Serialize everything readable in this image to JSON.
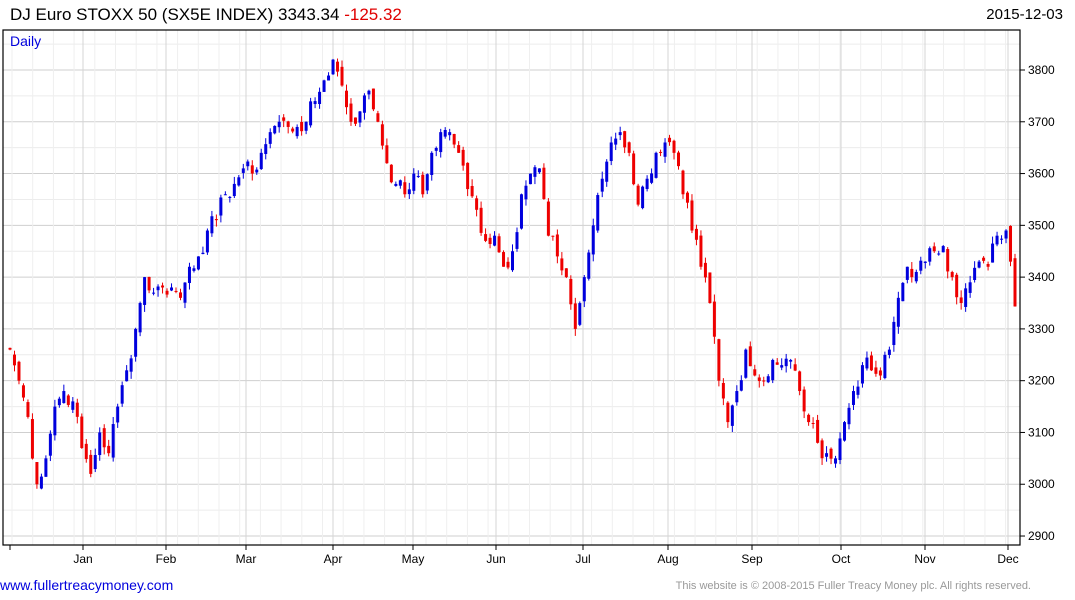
{
  "header": {
    "index_name": "DJ Euro STOXX 50 (SX5E INDEX)",
    "last": "3343.34",
    "change": "-125.32",
    "date": "2015-12-03"
  },
  "footer": {
    "site": "www.fullertreacymoney.com",
    "copyright": "This website is © 2008-2015 Fuller Treacy Money plc. All rights reserved."
  },
  "colors": {
    "up": "#0000dd",
    "down": "#ee0000",
    "grid": "#d8d8d8"
  },
  "chart_data": {
    "type": "candlestick",
    "period_label": "Daily",
    "ylim": [
      2875,
      3880
    ],
    "yticks": [
      2900,
      3000,
      3100,
      3200,
      3300,
      3400,
      3500,
      3600,
      3700,
      3800
    ],
    "months": [
      "Jan",
      "Feb",
      "Mar",
      "Apr",
      "May",
      "Jun",
      "Jul",
      "Aug",
      "Sep",
      "Oct",
      "Nov",
      "Dec"
    ],
    "closes_approx": [
      3260,
      3200,
      3130,
      3000,
      3050,
      3150,
      3180,
      3160,
      3070,
      3020,
      3100,
      3060,
      3150,
      3220,
      3300,
      3400,
      3370,
      3380,
      3380,
      3360,
      3420,
      3440,
      3490,
      3510,
      3560,
      3580,
      3610,
      3600,
      3640,
      3680,
      3700,
      3690,
      3690,
      3700,
      3740,
      3780,
      3820,
      3770,
      3700,
      3720,
      3760,
      3700,
      3620,
      3580,
      3560,
      3600,
      3560,
      3640,
      3680,
      3680,
      3640,
      3570,
      3530,
      3470,
      3480,
      3420,
      3450,
      3560,
      3600,
      3610,
      3480,
      3440,
      3400,
      3300,
      3400,
      3500,
      3590,
      3660,
      3680,
      3640,
      3540,
      3590,
      3640,
      3660,
      3640,
      3560,
      3490,
      3420,
      3350,
      3200,
      3120,
      3180,
      3260,
      3210,
      3200,
      3240,
      3230,
      3240,
      3180,
      3120,
      3080,
      3060,
      3050,
      3120,
      3180,
      3230,
      3220,
      3210,
      3260,
      3360,
      3420,
      3410,
      3430,
      3450,
      3460,
      3400,
      3350,
      3390,
      3430,
      3420,
      3480,
      3490,
      3343.34
    ]
  }
}
